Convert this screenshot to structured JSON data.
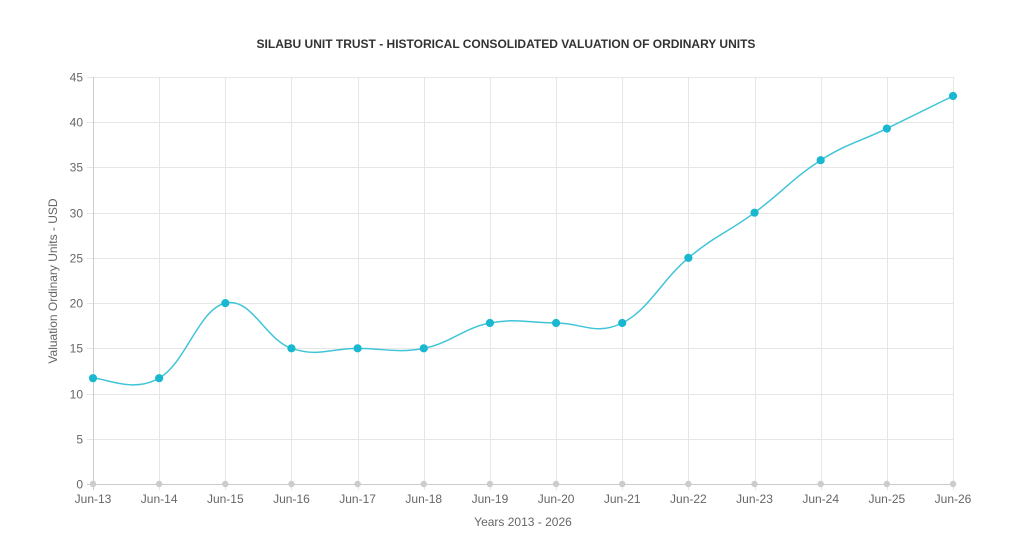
{
  "chart_data": {
    "type": "line",
    "title": "SILABU UNIT TRUST - HISTORICAL CONSOLIDATED VALUATION OF ORDINARY UNITS",
    "xlabel": "Years 2013 - 2026",
    "ylabel": "Valuation Ordinary Units - USD",
    "categories": [
      "Jun-13",
      "Jun-14",
      "Jun-15",
      "Jun-16",
      "Jun-17",
      "Jun-18",
      "Jun-19",
      "Jun-20",
      "Jun-21",
      "Jun-22",
      "Jun-23",
      "Jun-24",
      "Jun-25",
      "Jun-26"
    ],
    "values": [
      11.7,
      11.7,
      20,
      15,
      15,
      15,
      17.8,
      17.8,
      17.8,
      25,
      30,
      35.8,
      39.3,
      42.9
    ],
    "ylim": [
      0,
      45
    ],
    "yticks": [
      "0",
      "5",
      "10",
      "15",
      "20",
      "25",
      "30",
      "35",
      "40",
      "45"
    ],
    "grid": true,
    "legend": "none",
    "colors": {
      "series": "#40c4d8",
      "point": "#1ab8d0",
      "baseline_point": "#cccccc"
    }
  }
}
